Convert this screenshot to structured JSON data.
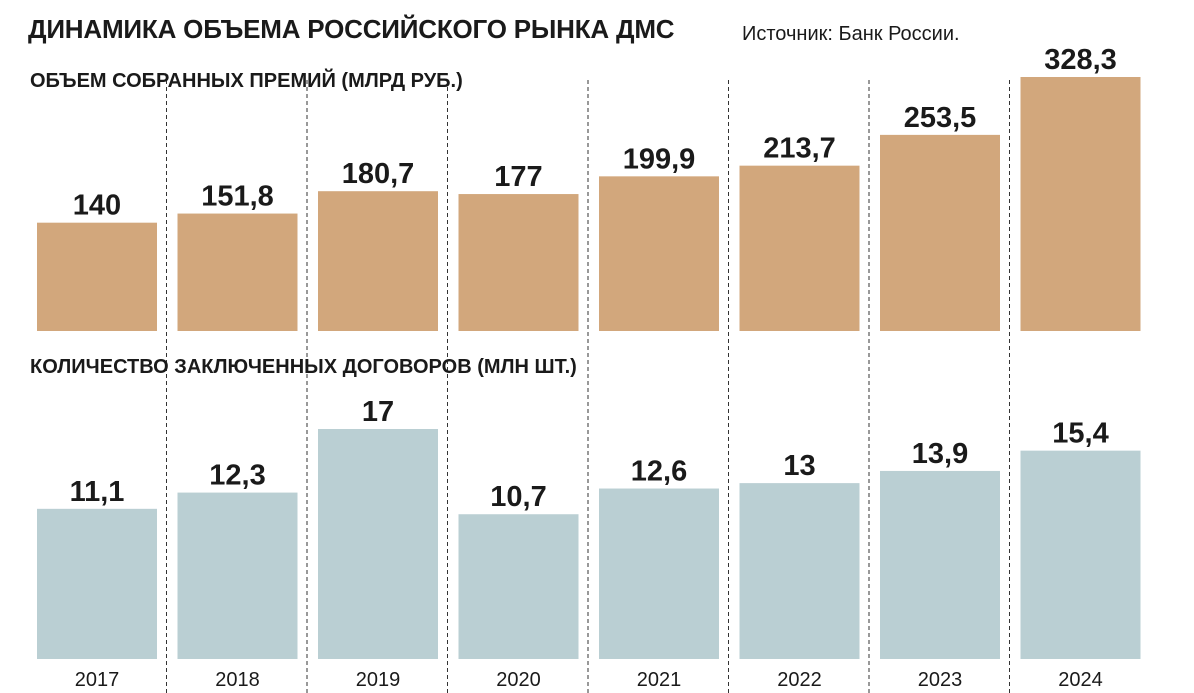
{
  "title": "ДИНАМИКА ОБЪЕМА РОССИЙСКОГО РЫНКА ДМС",
  "source": "Источник: Банк России.",
  "colors": {
    "premiums": "#d2a77c",
    "contracts": "#bacfd3",
    "divider": "#333333"
  },
  "chart_data": [
    {
      "type": "bar",
      "title": "ОБЪЕМ СОБРАННЫХ ПРЕМИЙ (МЛРД РУБ.)",
      "categories": [
        "2017",
        "2018",
        "2019",
        "2020",
        "2021",
        "2022",
        "2023",
        "2024"
      ],
      "values": [
        140,
        151.8,
        180.7,
        177,
        199.9,
        213.7,
        253.5,
        328.3
      ],
      "labels": [
        "140",
        "151,8",
        "180,7",
        "177",
        "199,9",
        "213,7",
        "253,5",
        "328,3"
      ],
      "xlabel": "",
      "ylabel": "",
      "ylim": [
        0,
        328.3
      ],
      "grid": false
    },
    {
      "type": "bar",
      "title": "КОЛИЧЕСТВО ЗАКЛЮЧЕННЫХ ДОГОВОРОВ (МЛН ШТ.)",
      "categories": [
        "2017",
        "2018",
        "2019",
        "2020",
        "2021",
        "2022",
        "2023",
        "2024"
      ],
      "values": [
        11.1,
        12.3,
        17,
        10.7,
        12.6,
        13,
        13.9,
        15.4
      ],
      "labels": [
        "11,1",
        "12,3",
        "17",
        "10,7",
        "12,6",
        "13",
        "13,9",
        "15,4"
      ],
      "xlabel": "",
      "ylabel": "",
      "ylim": [
        0,
        17
      ],
      "grid": false
    }
  ]
}
